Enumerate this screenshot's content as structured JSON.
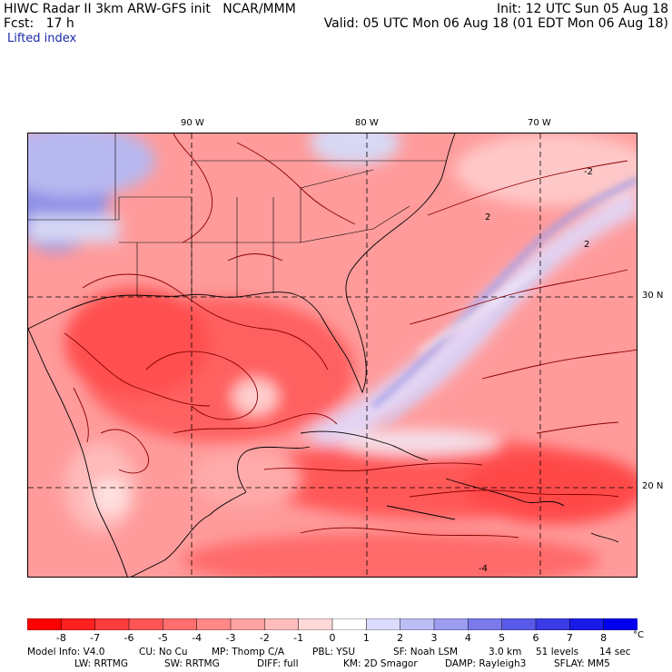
{
  "header": {
    "line1_left": "HIWC Radar II 3km ARW-GFS init   NCAR/MMM",
    "line1_right": "Init: 12 UTC Sun 05 Aug 18",
    "line2_left": "Fcst:   17 h",
    "line2_right": "Valid: 05 UTC Mon 06 Aug 18 (01 EDT Mon 06 Aug 18)",
    "field": "Lifted index"
  },
  "map": {
    "lon_labels": [
      "90 W",
      "80 W",
      "70 W"
    ],
    "lat_labels": [
      "30 N",
      "20 N"
    ],
    "contour_labels": [
      "-2",
      "2",
      "2",
      "-4"
    ]
  },
  "colorbar": {
    "labels": [
      "-8",
      "-7",
      "-6",
      "-5",
      "-4",
      "-3",
      "-2",
      "-1",
      "0",
      "1",
      "2",
      "3",
      "4",
      "5",
      "6",
      "7",
      "8"
    ],
    "unit": "°C",
    "colors": [
      "#ff0000",
      "#ff2020",
      "#ff3c3c",
      "#ff5555",
      "#ff6e6e",
      "#ff8888",
      "#ffa2a2",
      "#ffbcbc",
      "#ffd8d8",
      "#ffffff",
      "#dcdcff",
      "#bdbdf5",
      "#9c9cf0",
      "#7a7aec",
      "#5a5ae8",
      "#3a3ae6",
      "#1a1ae8",
      "#0000ee"
    ]
  },
  "footer": {
    "row1": [
      "Model Info: V4.0",
      "CU: No Cu",
      "MP: Thomp C/A",
      "PBL: YSU",
      "SF: Noah LSM",
      "3.0 km",
      "51 levels",
      "14 sec"
    ],
    "row2": [
      "LW: RRTMG",
      "SW: RRTMG",
      "DIFF: full",
      "KM: 2D Smagor",
      "DAMP: Rayleigh3",
      "SFLAY: MM5"
    ]
  }
}
